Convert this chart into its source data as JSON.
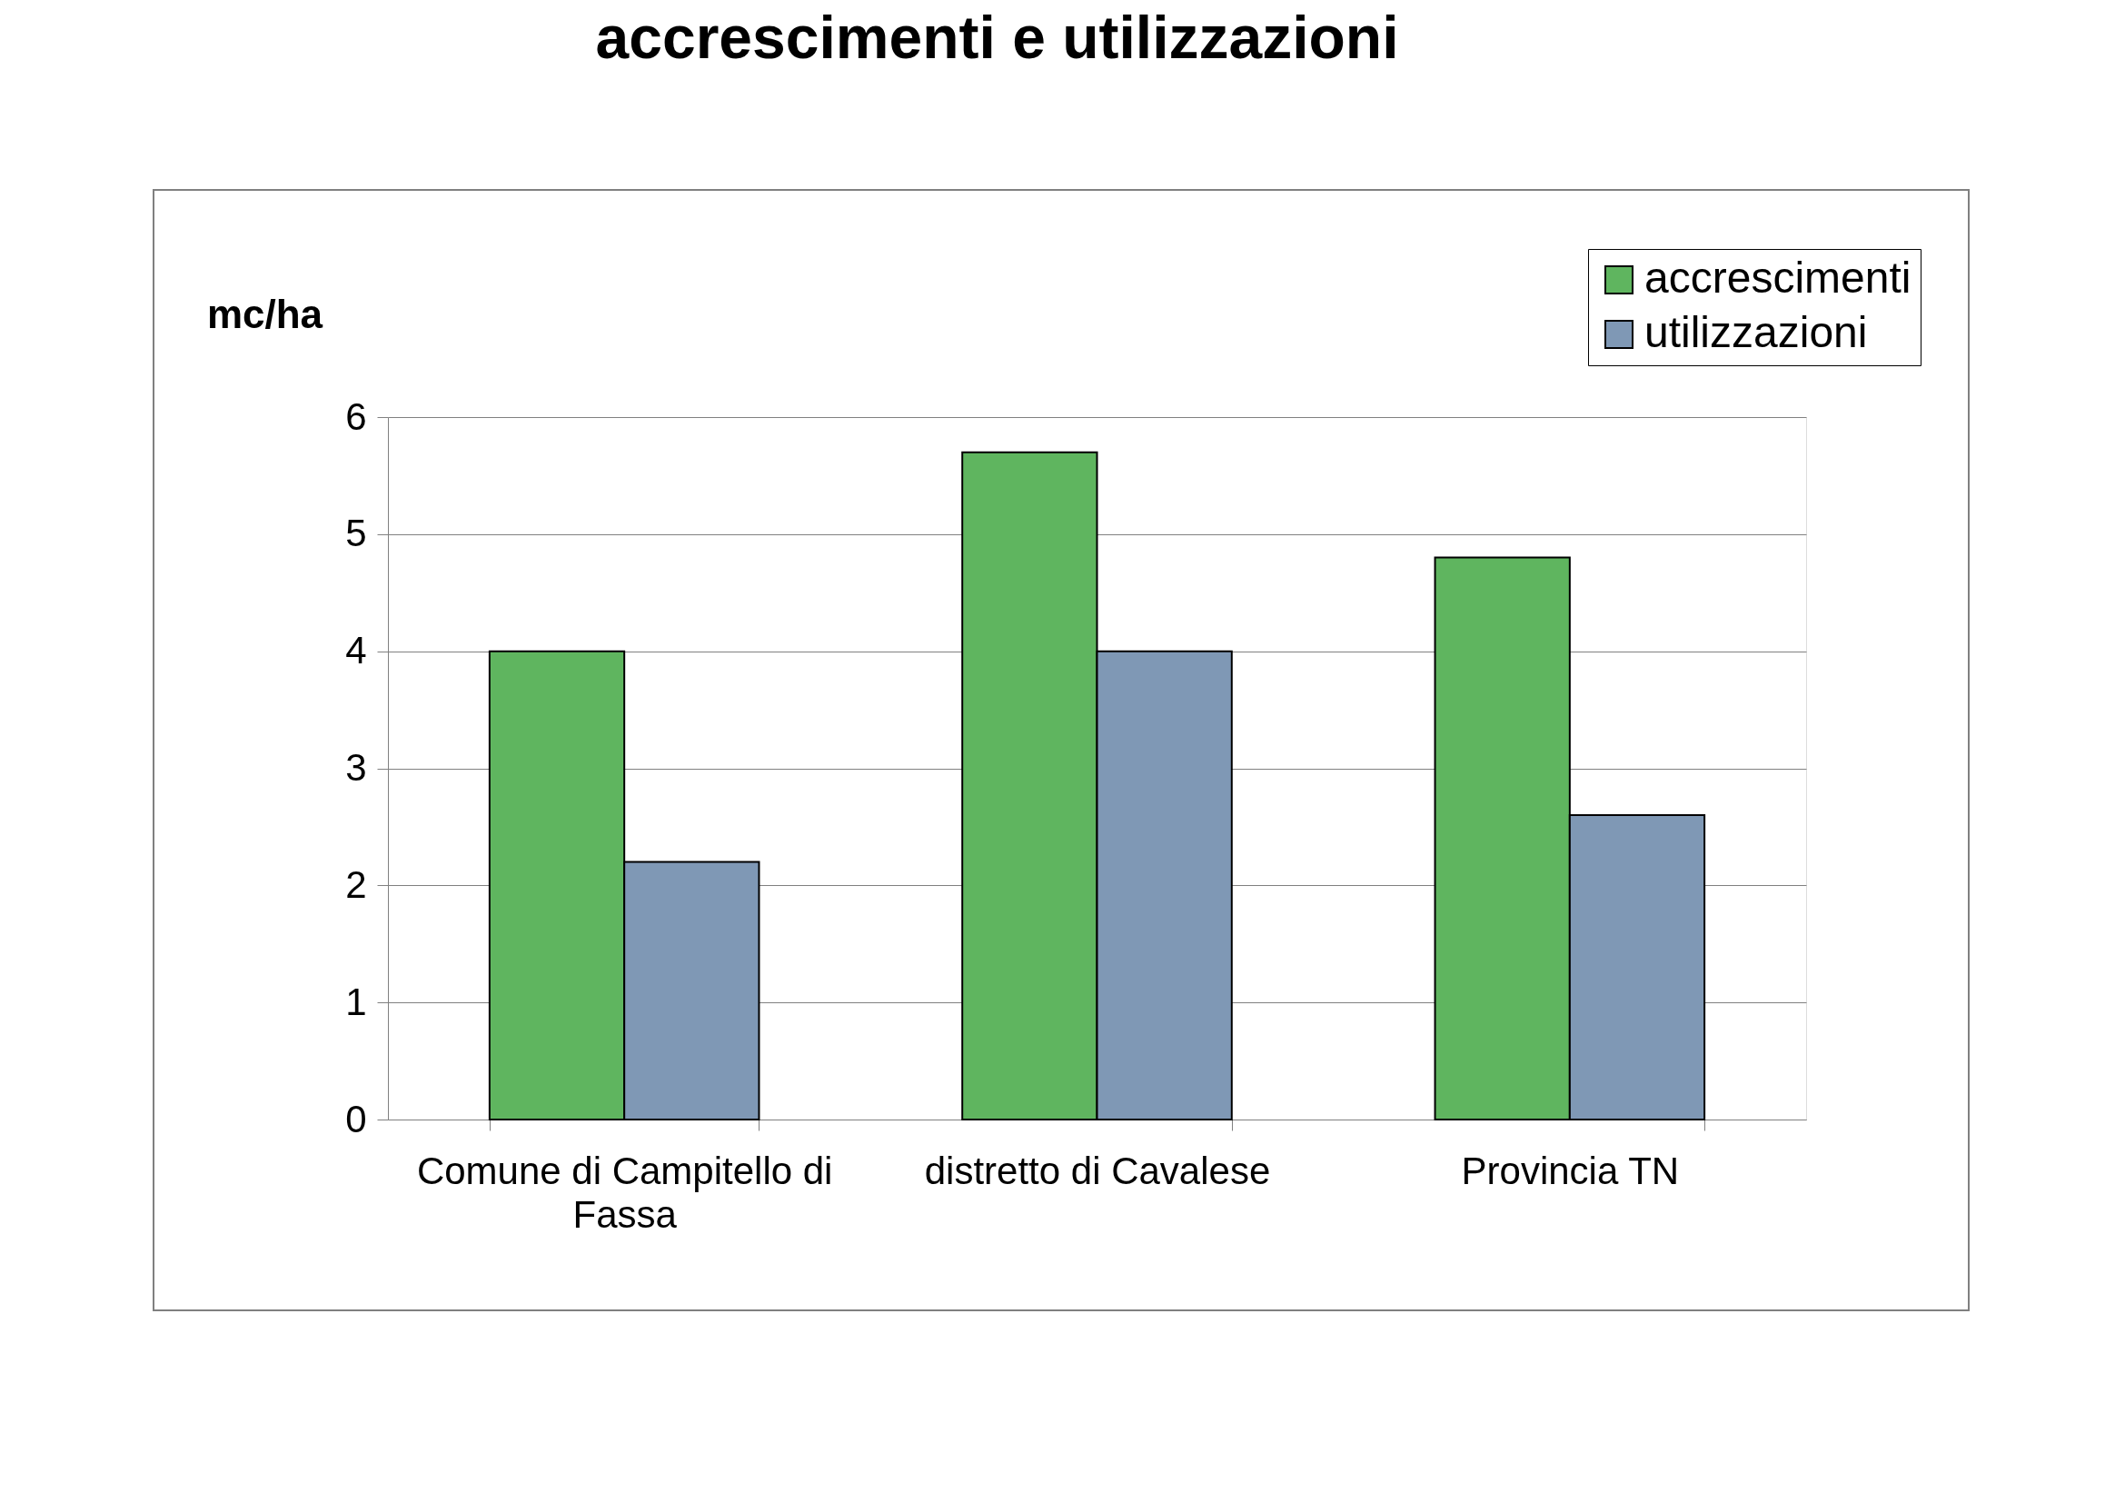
{
  "chart_data": {
    "type": "bar",
    "title": "accrescimenti e utilizzazioni",
    "ylabel": "mc/ha",
    "categories": [
      "Comune di Campitello di Fassa",
      "distretto di Cavalese",
      "Provincia TN"
    ],
    "series": [
      {
        "name": "accrescimenti",
        "color": "#5fb55f",
        "values": [
          4.0,
          5.7,
          4.8
        ]
      },
      {
        "name": "utilizzazioni",
        "color": "#7f98b5",
        "values": [
          2.2,
          4.0,
          2.6
        ]
      }
    ],
    "ylim": [
      0,
      6
    ],
    "yticks": [
      0,
      1,
      2,
      3,
      4,
      5,
      6
    ],
    "grid": "y",
    "legend": "top right"
  }
}
